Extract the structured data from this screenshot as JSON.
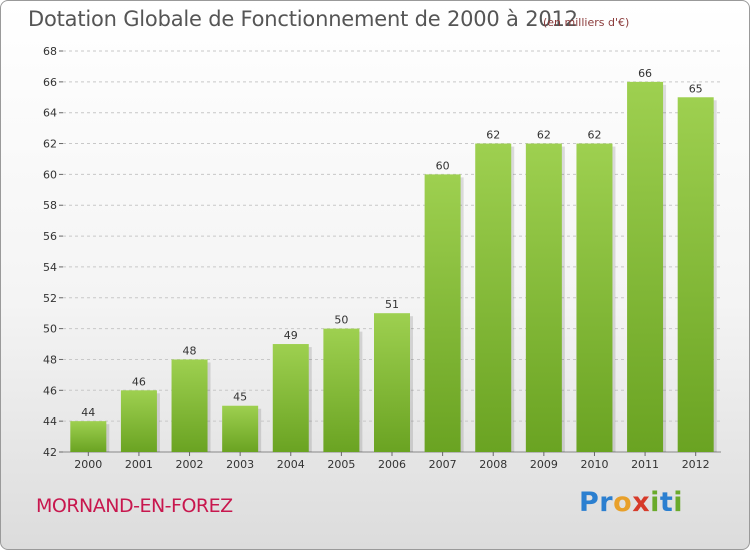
{
  "title": "Dotation Globale de Fonctionnement de 2000 à 2012",
  "subtitle": "(en milliers d'€)",
  "commune": "MORNAND-EN-FOREZ",
  "brand": {
    "letters": [
      {
        "char": "P",
        "color": "#2b7fd0"
      },
      {
        "char": "r",
        "color": "#2b7fd0"
      },
      {
        "char": "o",
        "color": "#e8a02a"
      },
      {
        "char": "x",
        "color": "#d63a2a"
      },
      {
        "char": "i",
        "color": "#6aaa2a"
      },
      {
        "char": "t",
        "color": "#2b7fd0"
      },
      {
        "char": "i",
        "color": "#6aaa2a"
      }
    ]
  },
  "colors": {
    "bar_top": "#9ed050",
    "bar_bottom": "#6aa322",
    "grid": "#c8c8c8",
    "axis_text": "#333333"
  },
  "chart_data": {
    "type": "bar",
    "title": "Dotation Globale de Fonctionnement de 2000 à 2012",
    "subtitle": "(en milliers d'€)",
    "categories": [
      "2000",
      "2001",
      "2002",
      "2003",
      "2004",
      "2005",
      "2006",
      "2007",
      "2008",
      "2009",
      "2010",
      "2011",
      "2012"
    ],
    "values": [
      44,
      46,
      48,
      45,
      49,
      50,
      51,
      60,
      62,
      62,
      62,
      66,
      65
    ],
    "ylim": [
      42,
      68
    ],
    "yticks": [
      42,
      44,
      46,
      48,
      50,
      52,
      54,
      56,
      58,
      60,
      62,
      64,
      66,
      68
    ],
    "grid": true
  }
}
